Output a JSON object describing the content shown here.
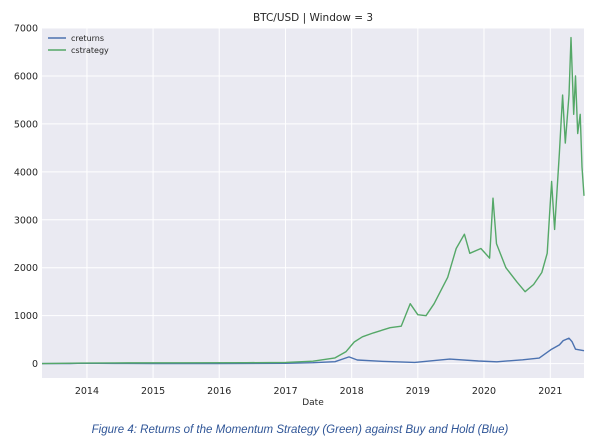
{
  "caption": "Figure 4: Returns of the Momentum Strategy (Green) against Buy and Hold (Blue)",
  "chart_data": {
    "type": "line",
    "title": "BTC/USD | Window = 3",
    "xlabel": "Date",
    "ylabel": "",
    "x_type": "date",
    "xlim": [
      "2013-04-28",
      "2021-07-06"
    ],
    "ylim": [
      -300,
      7000
    ],
    "x_ticks": [
      "2014",
      "2015",
      "2016",
      "2017",
      "2018",
      "2019",
      "2020",
      "2021"
    ],
    "y_ticks": [
      0,
      1000,
      2000,
      3000,
      4000,
      5000,
      6000,
      7000
    ],
    "grid": true,
    "legend": "top-left",
    "colors": {
      "creturns": "#4c72b0",
      "cstrategy": "#55a868",
      "plot_background": "#eaeaf2",
      "grid": "#ffffff"
    },
    "series": [
      {
        "name": "creturns",
        "points": [
          [
            "2013-04-28",
            1
          ],
          [
            "2013-10-01",
            1
          ],
          [
            "2013-12-01",
            8
          ],
          [
            "2014-06-01",
            5
          ],
          [
            "2015-01-01",
            2
          ],
          [
            "2016-01-01",
            3
          ],
          [
            "2017-01-01",
            7
          ],
          [
            "2017-06-01",
            20
          ],
          [
            "2017-10-01",
            40
          ],
          [
            "2017-12-17",
            140
          ],
          [
            "2018-02-01",
            75
          ],
          [
            "2018-06-01",
            50
          ],
          [
            "2018-12-15",
            25
          ],
          [
            "2019-06-26",
            95
          ],
          [
            "2019-12-01",
            55
          ],
          [
            "2020-03-12",
            38
          ],
          [
            "2020-08-01",
            80
          ],
          [
            "2020-11-01",
            115
          ],
          [
            "2021-01-08",
            300
          ],
          [
            "2021-02-20",
            390
          ],
          [
            "2021-03-13",
            480
          ],
          [
            "2021-04-14",
            530
          ],
          [
            "2021-05-01",
            460
          ],
          [
            "2021-05-20",
            300
          ],
          [
            "2021-07-06",
            270
          ]
        ]
      },
      {
        "name": "cstrategy",
        "points": [
          [
            "2013-04-28",
            1
          ],
          [
            "2013-12-01",
            10
          ],
          [
            "2014-06-01",
            15
          ],
          [
            "2015-06-01",
            18
          ],
          [
            "2016-06-01",
            20
          ],
          [
            "2017-01-01",
            25
          ],
          [
            "2017-06-01",
            50
          ],
          [
            "2017-10-01",
            120
          ],
          [
            "2017-12-01",
            250
          ],
          [
            "2018-01-15",
            450
          ],
          [
            "2018-03-01",
            560
          ],
          [
            "2018-05-01",
            640
          ],
          [
            "2018-08-01",
            750
          ],
          [
            "2018-10-01",
            780
          ],
          [
            "2018-11-20",
            1250
          ],
          [
            "2019-01-01",
            1020
          ],
          [
            "2019-02-15",
            1000
          ],
          [
            "2019-04-01",
            1250
          ],
          [
            "2019-06-15",
            1800
          ],
          [
            "2019-08-01",
            2400
          ],
          [
            "2019-09-15",
            2700
          ],
          [
            "2019-10-15",
            2300
          ],
          [
            "2019-12-15",
            2400
          ],
          [
            "2020-02-01",
            2200
          ],
          [
            "2020-02-20",
            3450
          ],
          [
            "2020-03-10",
            2500
          ],
          [
            "2020-05-01",
            2000
          ],
          [
            "2020-07-01",
            1700
          ],
          [
            "2020-08-15",
            1500
          ],
          [
            "2020-10-01",
            1650
          ],
          [
            "2020-11-15",
            1900
          ],
          [
            "2020-12-15",
            2300
          ],
          [
            "2021-01-08",
            3800
          ],
          [
            "2021-01-25",
            2800
          ],
          [
            "2021-02-20",
            4400
          ],
          [
            "2021-03-10",
            5600
          ],
          [
            "2021-03-25",
            4600
          ],
          [
            "2021-04-14",
            5600
          ],
          [
            "2021-04-25",
            6800
          ],
          [
            "2021-05-10",
            5200
          ],
          [
            "2021-05-20",
            6000
          ],
          [
            "2021-06-01",
            4800
          ],
          [
            "2021-06-15",
            5200
          ],
          [
            "2021-06-25",
            4100
          ],
          [
            "2021-07-06",
            3500
          ]
        ]
      }
    ]
  }
}
